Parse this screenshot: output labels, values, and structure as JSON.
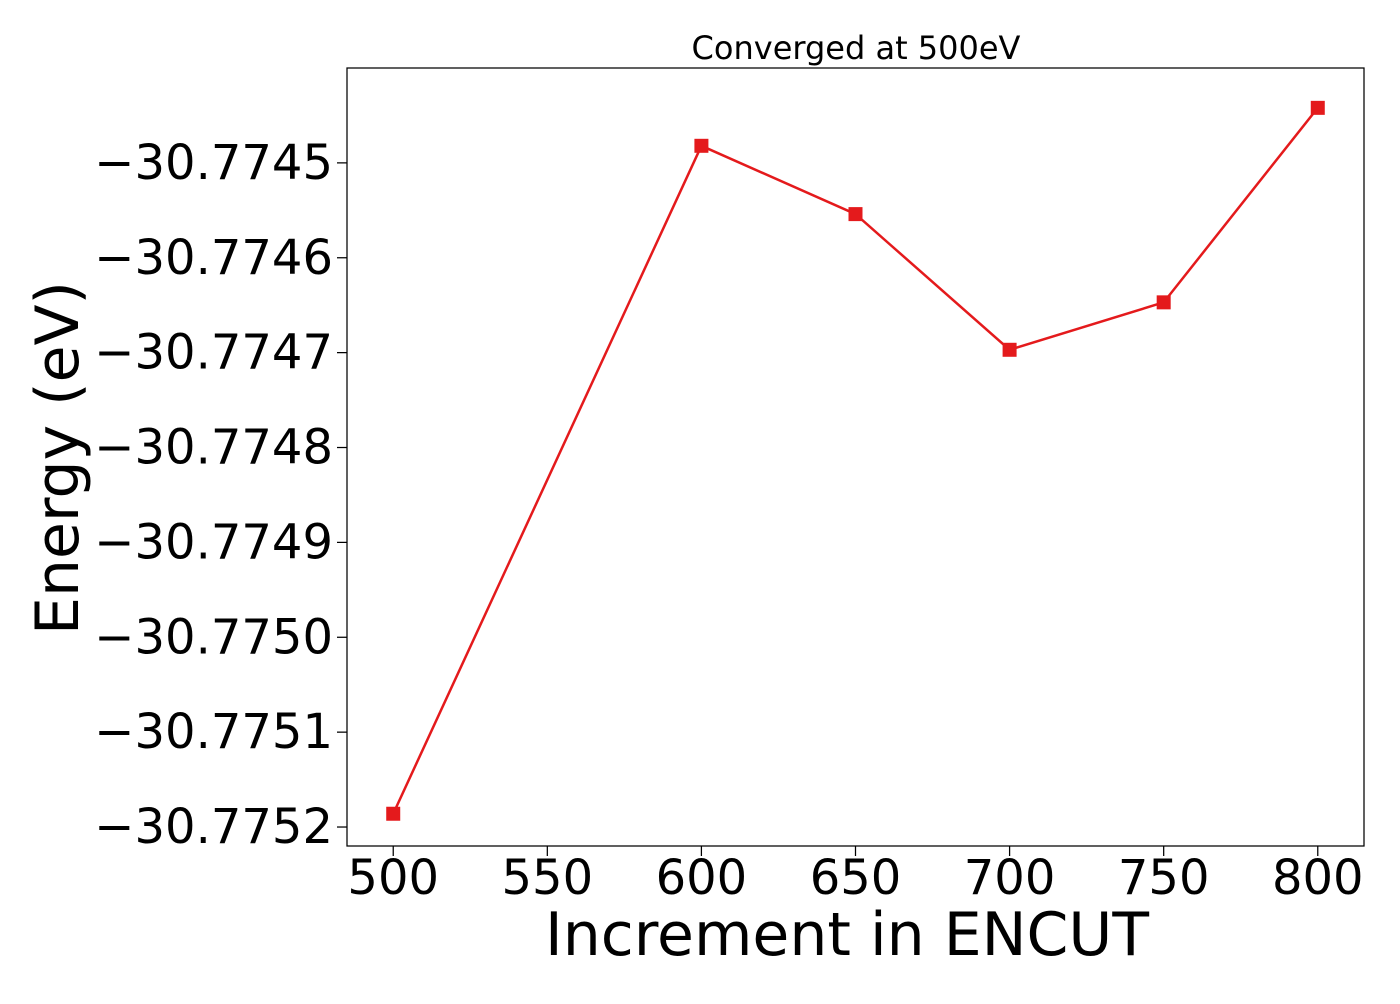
{
  "chart_data": {
    "type": "line",
    "title": "Converged at 500eV",
    "xlabel": "Increment in ENCUT",
    "ylabel": "Energy (eV)",
    "x": [
      500,
      600,
      650,
      700,
      750,
      800
    ],
    "series": [
      {
        "values": [
          -30.775186,
          -30.774482,
          -30.774554,
          -30.774697,
          -30.774647,
          -30.774442
        ],
        "color": "#e41a1c",
        "marker": "square"
      }
    ],
    "xticks": [
      500,
      550,
      600,
      650,
      700,
      750,
      800
    ],
    "xtick_labels": [
      "500",
      "550",
      "600",
      "650",
      "700",
      "750",
      "800"
    ],
    "yticks": [
      -30.7752,
      -30.7751,
      -30.775,
      -30.7749,
      -30.7748,
      -30.7747,
      -30.7746,
      -30.7745
    ],
    "ytick_labels": [
      "−30.7752",
      "−30.7751",
      "−30.7750",
      "−30.7749",
      "−30.7748",
      "−30.7747",
      "−30.7746",
      "−30.7745"
    ],
    "xlim": [
      485,
      815
    ],
    "ylim": [
      -30.77522,
      -30.7744
    ],
    "grid": false,
    "legend": false
  }
}
